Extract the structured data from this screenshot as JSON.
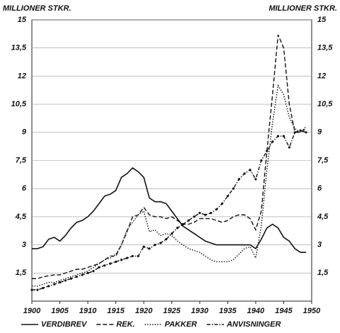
{
  "chart_data": {
    "type": "line",
    "ylabel": "MILLIONER STKR.",
    "x": [
      1900,
      1901,
      1902,
      1903,
      1904,
      1905,
      1906,
      1907,
      1908,
      1909,
      1910,
      1911,
      1912,
      1913,
      1914,
      1915,
      1916,
      1917,
      1918,
      1919,
      1920,
      1921,
      1922,
      1923,
      1924,
      1925,
      1926,
      1927,
      1928,
      1929,
      1930,
      1931,
      1932,
      1933,
      1934,
      1935,
      1936,
      1937,
      1938,
      1939,
      1940,
      1941,
      1942,
      1943,
      1944,
      1945,
      1946,
      1947,
      1948,
      1949
    ],
    "xlim": [
      1900,
      1950
    ],
    "xticks": [
      1900,
      1905,
      1910,
      1915,
      1920,
      1925,
      1930,
      1935,
      1940,
      1945,
      1950
    ],
    "ylim": [
      0,
      15
    ],
    "yticks": [
      {
        "value": 1.5,
        "label": "1,5"
      },
      3,
      {
        "value": 4.5,
        "label": "4,5"
      },
      6,
      {
        "value": 7.5,
        "label": "7,5"
      },
      9,
      {
        "value": 10.5,
        "label": "10,5"
      },
      12,
      {
        "value": 13.5,
        "label": "13,5"
      },
      15
    ],
    "grid": true,
    "series": [
      {
        "name": "VERDIBREV",
        "color": "#111111",
        "dash": "solid",
        "values": [
          2.8,
          2.8,
          2.9,
          3.3,
          3.4,
          3.2,
          3.5,
          3.9,
          4.2,
          4.3,
          4.5,
          4.8,
          5.2,
          5.6,
          5.7,
          5.9,
          6.6,
          6.8,
          7.1,
          6.9,
          6.6,
          5.5,
          5.3,
          5.3,
          5.2,
          4.8,
          4.4,
          4.0,
          3.8,
          3.6,
          3.4,
          3.2,
          3.1,
          3.0,
          3.0,
          3.0,
          3.0,
          3.0,
          3.0,
          3.0,
          2.8,
          3.3,
          3.9,
          4.1,
          3.9,
          3.4,
          3.2,
          2.8,
          2.6,
          2.6
        ]
      },
      {
        "name": "REK.",
        "color": "#111111",
        "dash": "dashed",
        "values": [
          1.2,
          1.2,
          1.3,
          1.35,
          1.4,
          1.4,
          1.5,
          1.6,
          1.7,
          1.7,
          1.8,
          1.9,
          2.0,
          2.2,
          2.4,
          2.4,
          3.0,
          3.7,
          4.5,
          4.6,
          5.0,
          4.6,
          4.5,
          4.5,
          4.4,
          4.5,
          4.3,
          4.1,
          4.1,
          4.2,
          4.4,
          4.4,
          4.4,
          4.3,
          4.2,
          4.3,
          4.5,
          4.6,
          4.6,
          4.4,
          3.8,
          4.8,
          8.0,
          11.0,
          14.2,
          13.5,
          10.5,
          9.0,
          9.0,
          9.2
        ]
      },
      {
        "name": "PAKKER",
        "color": "#111111",
        "dash": "dotted",
        "values": [
          0.8,
          0.8,
          0.9,
          1.0,
          1.0,
          1.1,
          1.2,
          1.3,
          1.4,
          1.5,
          1.6,
          1.8,
          2.0,
          2.2,
          2.3,
          2.5,
          3.0,
          3.8,
          4.2,
          4.6,
          4.8,
          3.7,
          3.8,
          3.5,
          3.6,
          3.5,
          3.2,
          3.0,
          2.8,
          2.7,
          2.6,
          2.4,
          2.2,
          2.1,
          2.1,
          2.1,
          2.2,
          2.5,
          2.8,
          2.9,
          2.3,
          4.0,
          7.0,
          9.5,
          11.5,
          11.0,
          9.8,
          9.2,
          9.0,
          9.3
        ]
      },
      {
        "name": "ANVISNINGER",
        "color": "#111111",
        "dash": "dotdash",
        "values": [
          0.6,
          0.6,
          0.7,
          0.8,
          0.9,
          1.0,
          1.1,
          1.2,
          1.3,
          1.4,
          1.5,
          1.6,
          1.8,
          1.9,
          2.0,
          2.1,
          2.2,
          2.3,
          2.4,
          2.4,
          2.9,
          2.8,
          3.0,
          3.1,
          3.3,
          3.6,
          3.9,
          4.1,
          4.3,
          4.5,
          4.7,
          4.6,
          4.7,
          4.9,
          5.2,
          5.6,
          6.0,
          6.5,
          6.8,
          7.0,
          6.5,
          7.5,
          8.0,
          8.5,
          8.8,
          8.8,
          8.2,
          9.0,
          9.1,
          9.0
        ]
      }
    ]
  }
}
